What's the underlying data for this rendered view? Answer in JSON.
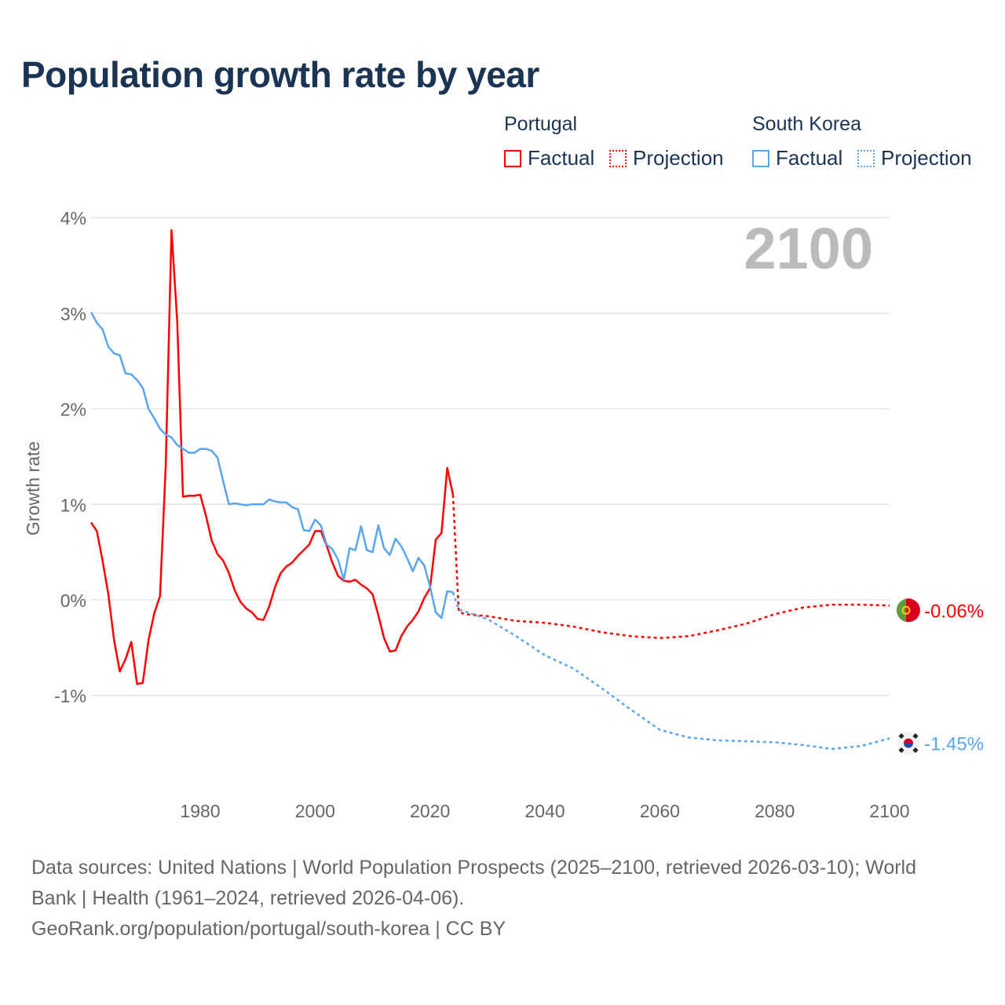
{
  "title": "Population growth rate by year",
  "legend": {
    "groups": [
      {
        "name": "Portugal",
        "factual": "Factual",
        "projection": "Projection",
        "color": "#ff0000"
      },
      {
        "name": "South Korea",
        "factual": "Factual",
        "projection": "Projection",
        "color": "#5aa5ef"
      }
    ]
  },
  "year_overlay": "2100",
  "footer": {
    "sources": "Data sources: United Nations | World Population Prospects (2025–2100, retrieved 2026-03-10); World Bank | Health (1961–2024, retrieved 2026-04-06).",
    "credit": "GeoRank.org/population/portugal/south-korea | CC BY"
  },
  "chart_data": {
    "type": "line",
    "title": "Population growth rate by year",
    "ylabel": "Growth rate",
    "xlabel": "",
    "xlim": [
      1961,
      2100
    ],
    "ylim": [
      -2,
      4.1
    ],
    "x_ticks": [
      1980,
      2000,
      2020,
      2040,
      2060,
      2080,
      2100
    ],
    "y_ticks": [
      {
        "v": 4,
        "label": "4%"
      },
      {
        "v": 3,
        "label": "3%"
      },
      {
        "v": 2,
        "label": "2%"
      },
      {
        "v": 1,
        "label": "1%"
      },
      {
        "v": 0,
        "label": "0%"
      },
      {
        "v": -1,
        "label": "-1%"
      }
    ],
    "grid": true,
    "legend_position": "top-right",
    "series": [
      {
        "name": "Portugal",
        "color": "#ff0000",
        "end_label": "-0.06%",
        "factual": {
          "start_year": 1961,
          "values": [
            0.81,
            0.72,
            0.41,
            0.06,
            -0.42,
            -0.75,
            -0.62,
            -0.44,
            -0.88,
            -0.87,
            -0.42,
            -0.14,
            0.04,
            1.41,
            3.87,
            2.91,
            1.08,
            1.09,
            1.09,
            1.1,
            0.88,
            0.62,
            0.48,
            0.41,
            0.28,
            0.1,
            -0.02,
            -0.09,
            -0.13,
            -0.2,
            -0.21,
            -0.07,
            0.13,
            0.28,
            0.35,
            0.39,
            0.46,
            0.52,
            0.58,
            0.72,
            0.72,
            0.57,
            0.39,
            0.25,
            0.2,
            0.19,
            0.21,
            0.16,
            0.12,
            0.06,
            -0.16,
            -0.4,
            -0.54,
            -0.53,
            -0.38,
            -0.28,
            -0.21,
            -0.12,
            0.02,
            0.12,
            0.63,
            0.7,
            1.38,
            1.1
          ]
        },
        "projection": {
          "years": [
            2024,
            2025,
            2026,
            2030,
            2035,
            2040,
            2045,
            2050,
            2055,
            2060,
            2065,
            2070,
            2075,
            2080,
            2085,
            2090,
            2095,
            2100
          ],
          "values": [
            1.1,
            -0.12,
            -0.15,
            -0.17,
            -0.22,
            -0.24,
            -0.28,
            -0.34,
            -0.38,
            -0.4,
            -0.38,
            -0.32,
            -0.25,
            -0.15,
            -0.08,
            -0.05,
            -0.05,
            -0.06
          ]
        }
      },
      {
        "name": "South Korea",
        "color": "#5aa5ef",
        "end_label": "-1.45%",
        "factual": {
          "start_year": 1961,
          "values": [
            3.01,
            2.9,
            2.83,
            2.65,
            2.58,
            2.56,
            2.37,
            2.36,
            2.3,
            2.22,
            2.0,
            1.9,
            1.79,
            1.73,
            1.7,
            1.62,
            1.58,
            1.54,
            1.54,
            1.58,
            1.58,
            1.56,
            1.49,
            1.24,
            1.0,
            1.01,
            1.0,
            0.99,
            1.0,
            1.0,
            1.0,
            1.05,
            1.03,
            1.02,
            1.02,
            0.97,
            0.95,
            0.73,
            0.72,
            0.84,
            0.78,
            0.58,
            0.53,
            0.42,
            0.21,
            0.54,
            0.52,
            0.77,
            0.52,
            0.5,
            0.78,
            0.54,
            0.47,
            0.64,
            0.56,
            0.44,
            0.3,
            0.44,
            0.36,
            0.14,
            -0.13,
            -0.19,
            0.09,
            0.08
          ]
        },
        "projection": {
          "years": [
            2024,
            2025,
            2030,
            2035,
            2040,
            2045,
            2050,
            2055,
            2060,
            2065,
            2070,
            2075,
            2080,
            2085,
            2090,
            2095,
            2100
          ],
          "values": [
            0.08,
            -0.1,
            -0.2,
            -0.38,
            -0.58,
            -0.72,
            -0.93,
            -1.15,
            -1.36,
            -1.44,
            -1.47,
            -1.48,
            -1.49,
            -1.52,
            -1.56,
            -1.53,
            -1.45
          ]
        }
      }
    ]
  }
}
